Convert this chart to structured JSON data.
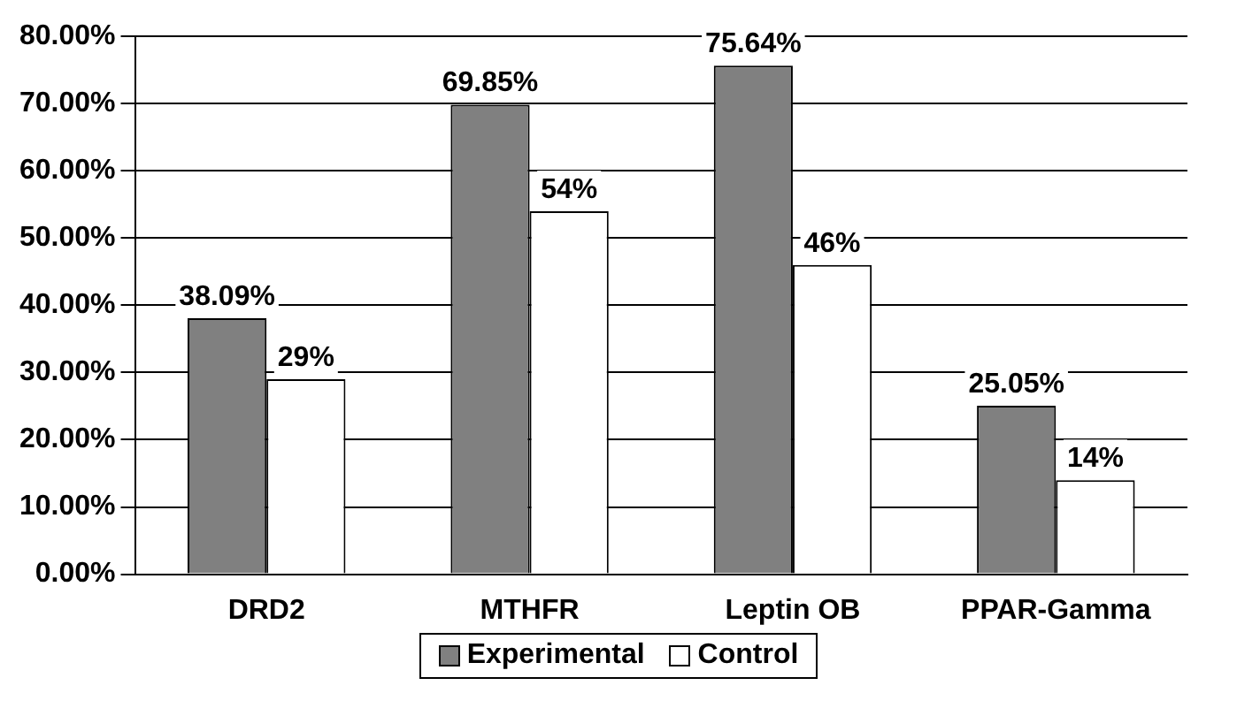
{
  "chart_data": {
    "type": "bar",
    "categories": [
      "DRD2",
      "MTHFR",
      "Leptin OB",
      "PPAR-Gamma"
    ],
    "series": [
      {
        "name": "Experimental",
        "color": "#808080",
        "values": [
          38.09,
          69.85,
          75.64,
          25.05
        ],
        "value_labels": [
          "38.09%",
          "69.85%",
          "75.64%",
          "25.05%"
        ]
      },
      {
        "name": "Control",
        "color": "#ffffff",
        "values": [
          29,
          54,
          46,
          14
        ],
        "value_labels": [
          "29%",
          "54%",
          "46%",
          "14%"
        ]
      }
    ],
    "ylim": [
      0,
      80
    ],
    "yticks": [
      {
        "value": 0,
        "label": "0.00%"
      },
      {
        "value": 10,
        "label": "10.00%"
      },
      {
        "value": 20,
        "label": "20.00%"
      },
      {
        "value": 30,
        "label": "30.00%"
      },
      {
        "value": 40,
        "label": "40.00%"
      },
      {
        "value": 50,
        "label": "50.00%"
      },
      {
        "value": 60,
        "label": "60.00%"
      },
      {
        "value": 70,
        "label": "70.00%"
      },
      {
        "value": 80,
        "label": "80.00%"
      }
    ],
    "grid": "y",
    "legend": "bottom"
  }
}
